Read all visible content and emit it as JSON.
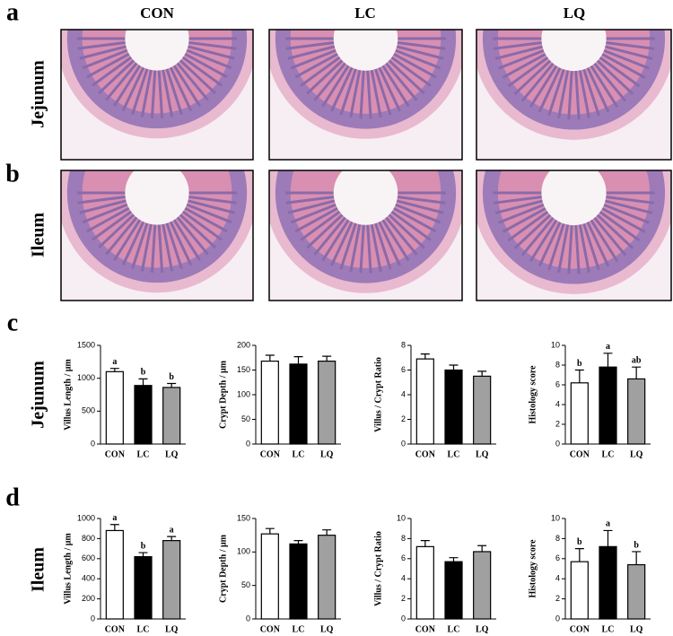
{
  "panel_labels": [
    "a",
    "b",
    "c",
    "d"
  ],
  "image_columns": [
    "CON",
    "LC",
    "LQ"
  ],
  "image_rows": [
    "Jejunum",
    "Ileum"
  ],
  "chart_rows": [
    "Jejunum",
    "Ileum"
  ],
  "chart_data": [
    {
      "type": "bar",
      "ylabel": "Villus Length / μm",
      "categories": [
        "CON",
        "LC",
        "LQ"
      ],
      "values": [
        1100,
        890,
        860
      ],
      "errors": [
        50,
        100,
        60
      ],
      "colors": [
        "#ffffff",
        "#000000",
        "#a0a0a0"
      ],
      "significance": [
        "a",
        "b",
        "b"
      ],
      "ylim": [
        0,
        1500
      ],
      "yticks": [
        0,
        500,
        1000,
        1500
      ]
    },
    {
      "type": "bar",
      "ylabel": "Crypt Depth / μm",
      "categories": [
        "CON",
        "LC",
        "LQ"
      ],
      "values": [
        168,
        162,
        168
      ],
      "errors": [
        12,
        15,
        10
      ],
      "colors": [
        "#ffffff",
        "#000000",
        "#a0a0a0"
      ],
      "ylim": [
        0,
        200
      ],
      "yticks": [
        0,
        50,
        100,
        150,
        200
      ]
    },
    {
      "type": "bar",
      "ylabel": "Villus / Crypt Ratio",
      "categories": [
        "CON",
        "LC",
        "LQ"
      ],
      "values": [
        6.9,
        6.0,
        5.5
      ],
      "errors": [
        0.4,
        0.4,
        0.4
      ],
      "colors": [
        "#ffffff",
        "#000000",
        "#a0a0a0"
      ],
      "ylim": [
        0,
        8
      ],
      "yticks": [
        0,
        2,
        4,
        6,
        8
      ]
    },
    {
      "type": "bar",
      "ylabel": "Histology score",
      "categories": [
        "CON",
        "LC",
        "LQ"
      ],
      "values": [
        6.2,
        7.8,
        6.6
      ],
      "errors": [
        1.3,
        1.4,
        1.2
      ],
      "colors": [
        "#ffffff",
        "#000000",
        "#a0a0a0"
      ],
      "significance": [
        "b",
        "a",
        "ab"
      ],
      "ylim": [
        0,
        10
      ],
      "yticks": [
        0,
        2,
        4,
        6,
        8,
        10
      ]
    },
    {
      "type": "bar",
      "ylabel": "Villus Length / μm",
      "categories": [
        "CON",
        "LC",
        "LQ"
      ],
      "values": [
        880,
        620,
        780
      ],
      "errors": [
        60,
        40,
        40
      ],
      "colors": [
        "#ffffff",
        "#000000",
        "#a0a0a0"
      ],
      "significance": [
        "a",
        "b",
        "a"
      ],
      "ylim": [
        0,
        1000
      ],
      "yticks": [
        0,
        200,
        400,
        600,
        800,
        1000
      ]
    },
    {
      "type": "bar",
      "ylabel": "Crypt Depth / μm",
      "categories": [
        "CON",
        "LC",
        "LQ"
      ],
      "values": [
        127,
        112,
        125
      ],
      "errors": [
        8,
        5,
        8
      ],
      "colors": [
        "#ffffff",
        "#000000",
        "#a0a0a0"
      ],
      "ylim": [
        0,
        150
      ],
      "yticks": [
        0,
        50,
        100,
        150
      ]
    },
    {
      "type": "bar",
      "ylabel": "Villus / Crypt Ratio",
      "categories": [
        "CON",
        "LC",
        "LQ"
      ],
      "values": [
        7.2,
        5.7,
        6.7
      ],
      "errors": [
        0.6,
        0.4,
        0.6
      ],
      "colors": [
        "#ffffff",
        "#000000",
        "#a0a0a0"
      ],
      "ylim": [
        0,
        10
      ],
      "yticks": [
        0,
        2,
        4,
        6,
        8,
        10
      ]
    },
    {
      "type": "bar",
      "ylabel": "Histology score",
      "categories": [
        "CON",
        "LC",
        "LQ"
      ],
      "values": [
        5.7,
        7.2,
        5.4
      ],
      "errors": [
        1.3,
        1.6,
        1.3
      ],
      "colors": [
        "#ffffff",
        "#000000",
        "#a0a0a0"
      ],
      "significance": [
        "b",
        "a",
        "b"
      ],
      "ylim": [
        0,
        10
      ],
      "yticks": [
        0,
        2,
        4,
        6,
        8,
        10
      ]
    }
  ]
}
